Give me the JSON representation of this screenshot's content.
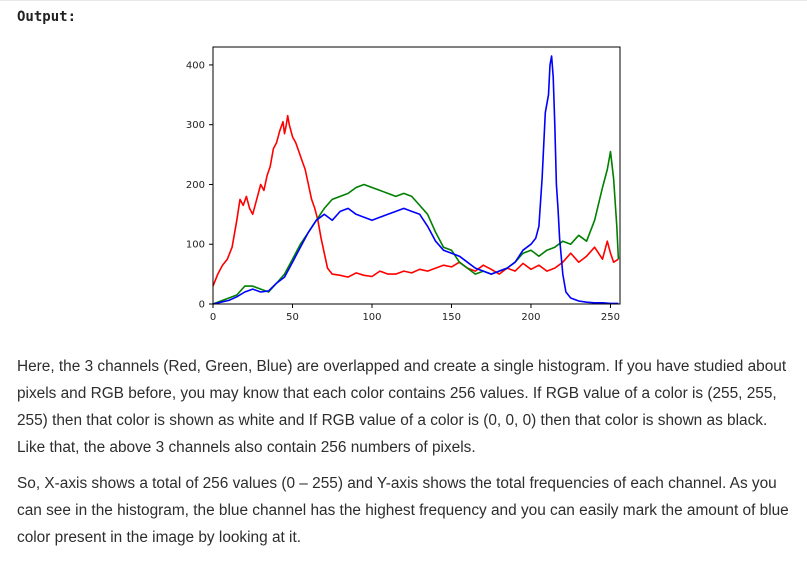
{
  "heading": "Output:",
  "paragraphs": [
    "Here, the 3 channels (Red, Green, Blue) are overlapped and create a single histogram. If you have studied about pixels and RGB before, you may know that each color contains 256 values. If RGB value of a color is (255, 255, 255) then that color is shown as white and If RGB value of a color is (0, 0, 0) then that color is shown as black. Like that, the above 3 channels also contain 256 numbers of pixels.",
    "So, X-axis shows a total of 256 values (0 – 255) and Y-axis shows the total frequencies of each channel. As you can see in the histogram, the blue channel has the highest frequency and you can easily mark the amount of blue color present in the image by looking at it."
  ],
  "chart_data": {
    "type": "line",
    "title": "",
    "xlabel": "",
    "ylabel": "",
    "xlim": [
      0,
      256
    ],
    "ylim": [
      0,
      430
    ],
    "xticks": [
      "0",
      "50",
      "100",
      "150",
      "200",
      "250"
    ],
    "yticks": [
      "0",
      "100",
      "200",
      "300",
      "400"
    ],
    "grid": false,
    "series": [
      {
        "color": "#ff0000",
        "points": [
          [
            0,
            30
          ],
          [
            3,
            50
          ],
          [
            6,
            65
          ],
          [
            9,
            75
          ],
          [
            12,
            95
          ],
          [
            15,
            140
          ],
          [
            17,
            175
          ],
          [
            19,
            165
          ],
          [
            21,
            180
          ],
          [
            23,
            160
          ],
          [
            25,
            150
          ],
          [
            28,
            180
          ],
          [
            30,
            200
          ],
          [
            32,
            190
          ],
          [
            34,
            215
          ],
          [
            36,
            230
          ],
          [
            38,
            260
          ],
          [
            40,
            270
          ],
          [
            42,
            290
          ],
          [
            44,
            305
          ],
          [
            45,
            285
          ],
          [
            46,
            298
          ],
          [
            47,
            315
          ],
          [
            48,
            300
          ],
          [
            50,
            280
          ],
          [
            52,
            270
          ],
          [
            54,
            255
          ],
          [
            56,
            240
          ],
          [
            58,
            225
          ],
          [
            60,
            200
          ],
          [
            62,
            175
          ],
          [
            64,
            160
          ],
          [
            66,
            140
          ],
          [
            68,
            110
          ],
          [
            70,
            85
          ],
          [
            72,
            60
          ],
          [
            75,
            50
          ],
          [
            80,
            48
          ],
          [
            85,
            45
          ],
          [
            90,
            52
          ],
          [
            95,
            48
          ],
          [
            100,
            46
          ],
          [
            105,
            55
          ],
          [
            110,
            50
          ],
          [
            115,
            50
          ],
          [
            120,
            55
          ],
          [
            125,
            52
          ],
          [
            130,
            58
          ],
          [
            135,
            55
          ],
          [
            140,
            60
          ],
          [
            145,
            65
          ],
          [
            150,
            62
          ],
          [
            155,
            70
          ],
          [
            160,
            60
          ],
          [
            165,
            55
          ],
          [
            170,
            65
          ],
          [
            175,
            58
          ],
          [
            180,
            50
          ],
          [
            185,
            60
          ],
          [
            190,
            55
          ],
          [
            195,
            68
          ],
          [
            200,
            58
          ],
          [
            205,
            65
          ],
          [
            210,
            55
          ],
          [
            215,
            60
          ],
          [
            220,
            70
          ],
          [
            225,
            85
          ],
          [
            230,
            70
          ],
          [
            235,
            80
          ],
          [
            240,
            95
          ],
          [
            245,
            75
          ],
          [
            248,
            105
          ],
          [
            250,
            85
          ],
          [
            252,
            70
          ],
          [
            255,
            75
          ]
        ]
      },
      {
        "color": "#008000",
        "points": [
          [
            0,
            0
          ],
          [
            5,
            5
          ],
          [
            10,
            10
          ],
          [
            15,
            15
          ],
          [
            20,
            30
          ],
          [
            25,
            30
          ],
          [
            30,
            25
          ],
          [
            35,
            20
          ],
          [
            40,
            35
          ],
          [
            45,
            50
          ],
          [
            50,
            75
          ],
          [
            55,
            100
          ],
          [
            60,
            120
          ],
          [
            65,
            140
          ],
          [
            70,
            160
          ],
          [
            75,
            175
          ],
          [
            80,
            180
          ],
          [
            85,
            185
          ],
          [
            90,
            195
          ],
          [
            95,
            200
          ],
          [
            100,
            195
          ],
          [
            105,
            190
          ],
          [
            110,
            185
          ],
          [
            115,
            180
          ],
          [
            120,
            185
          ],
          [
            125,
            180
          ],
          [
            130,
            165
          ],
          [
            135,
            150
          ],
          [
            140,
            120
          ],
          [
            145,
            95
          ],
          [
            150,
            90
          ],
          [
            155,
            70
          ],
          [
            160,
            60
          ],
          [
            165,
            50
          ],
          [
            170,
            55
          ],
          [
            175,
            50
          ],
          [
            180,
            55
          ],
          [
            185,
            60
          ],
          [
            190,
            70
          ],
          [
            195,
            85
          ],
          [
            200,
            90
          ],
          [
            205,
            80
          ],
          [
            210,
            90
          ],
          [
            215,
            95
          ],
          [
            220,
            105
          ],
          [
            225,
            100
          ],
          [
            230,
            115
          ],
          [
            235,
            105
          ],
          [
            240,
            140
          ],
          [
            245,
            195
          ],
          [
            248,
            225
          ],
          [
            250,
            255
          ],
          [
            252,
            210
          ],
          [
            254,
            130
          ],
          [
            255,
            75
          ]
        ]
      },
      {
        "color": "#0000ff",
        "points": [
          [
            0,
            0
          ],
          [
            5,
            3
          ],
          [
            10,
            6
          ],
          [
            15,
            12
          ],
          [
            20,
            20
          ],
          [
            25,
            25
          ],
          [
            30,
            20
          ],
          [
            35,
            22
          ],
          [
            40,
            35
          ],
          [
            45,
            45
          ],
          [
            50,
            70
          ],
          [
            55,
            95
          ],
          [
            60,
            120
          ],
          [
            65,
            140
          ],
          [
            70,
            150
          ],
          [
            75,
            140
          ],
          [
            80,
            155
          ],
          [
            85,
            160
          ],
          [
            90,
            150
          ],
          [
            95,
            145
          ],
          [
            100,
            140
          ],
          [
            105,
            145
          ],
          [
            110,
            150
          ],
          [
            115,
            155
          ],
          [
            120,
            160
          ],
          [
            125,
            155
          ],
          [
            130,
            150
          ],
          [
            135,
            130
          ],
          [
            140,
            105
          ],
          [
            145,
            90
          ],
          [
            150,
            85
          ],
          [
            155,
            80
          ],
          [
            160,
            70
          ],
          [
            165,
            60
          ],
          [
            170,
            55
          ],
          [
            175,
            50
          ],
          [
            180,
            55
          ],
          [
            185,
            60
          ],
          [
            190,
            70
          ],
          [
            195,
            90
          ],
          [
            200,
            100
          ],
          [
            203,
            110
          ],
          [
            205,
            130
          ],
          [
            207,
            210
          ],
          [
            209,
            320
          ],
          [
            211,
            350
          ],
          [
            212,
            400
          ],
          [
            213,
            415
          ],
          [
            214,
            380
          ],
          [
            215,
            300
          ],
          [
            216,
            200
          ],
          [
            217,
            160
          ],
          [
            218,
            110
          ],
          [
            220,
            50
          ],
          [
            222,
            20
          ],
          [
            225,
            10
          ],
          [
            230,
            5
          ],
          [
            235,
            3
          ],
          [
            240,
            2
          ],
          [
            245,
            2
          ],
          [
            250,
            1
          ],
          [
            255,
            1
          ]
        ]
      }
    ]
  }
}
